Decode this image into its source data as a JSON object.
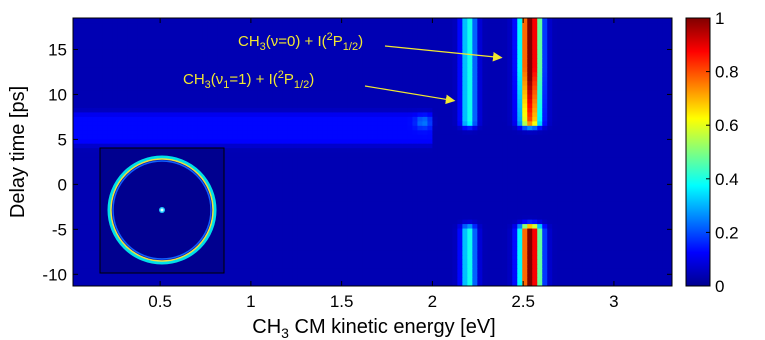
{
  "chart_data": {
    "type": "heatmap",
    "title": "",
    "xlabel": "CH3 CM kinetic energy [eV]",
    "xlabel_parts": {
      "pre": "CH",
      "sub": "3",
      "post": " CM kinetic energy [eV]"
    },
    "ylabel": "Delay time [ps]",
    "xlim": [
      0.02,
      3.32
    ],
    "ylim": [
      -11.3,
      18.5
    ],
    "xticks": [
      "0.5",
      "1",
      "1.5",
      "2",
      "2.5",
      "3"
    ],
    "xtick_values": [
      0.5,
      1,
      1.5,
      2,
      2.5,
      3
    ],
    "yticks": [
      "-10",
      "-5",
      "0",
      "5",
      "10",
      "15"
    ],
    "ytick_values": [
      -10,
      -5,
      0,
      5,
      10,
      15
    ],
    "colorbar": {
      "range": [
        0,
        1
      ],
      "ticks": [
        "0",
        "0.2",
        "0.4",
        "0.6",
        "0.8",
        "1"
      ],
      "tick_values": [
        0,
        0.2,
        0.4,
        0.6,
        0.8,
        1
      ],
      "colormap": "jet"
    },
    "features": [
      {
        "name": "CH3(v=0) + I(2P1/2) band",
        "center_energy_eV": 2.54,
        "peak_intensity": 1.0,
        "delay_ranges_ps": [
          [
            7,
            18.5
          ],
          [
            -11.3,
            -5
          ]
        ]
      },
      {
        "name": "CH3(v1=1) + I(2P1/2) band",
        "center_energy_eV": 2.2,
        "peak_intensity": 0.35,
        "delay_ranges_ps": [
          [
            7,
            18.5
          ],
          [
            -11.3,
            -5
          ]
        ]
      },
      {
        "name": "weak low-energy band",
        "energy_range_eV": [
          0.02,
          2.0
        ],
        "peak_intensity": 0.08,
        "delay_ranges_ps": [
          [
            5,
            7.5
          ]
        ]
      },
      {
        "name": "weak spot",
        "center_energy_eV": 1.95,
        "center_delay_ps": 7,
        "peak_intensity": 0.12
      }
    ],
    "annotations": [
      {
        "text": "CH3(v=0) + I(2P1/2)",
        "parts": [
          "CH",
          "3",
          "(ν=0) + I(",
          "2",
          "P",
          "1/2",
          ")"
        ],
        "arrow_to": [
          2.38,
          14.1
        ]
      },
      {
        "text": "CH3(v1=1) + I(2P1/2)",
        "parts": [
          "CH",
          "3",
          "(ν",
          "1",
          "=1) + I(",
          "2",
          "P",
          "1/2",
          ")"
        ],
        "arrow_to": [
          2.12,
          9.3
        ]
      }
    ],
    "inset": {
      "description_icon": "velocity-map-image-ring"
    }
  },
  "colors": {
    "background_low": "#00008f",
    "annotation": "#f2e830"
  }
}
